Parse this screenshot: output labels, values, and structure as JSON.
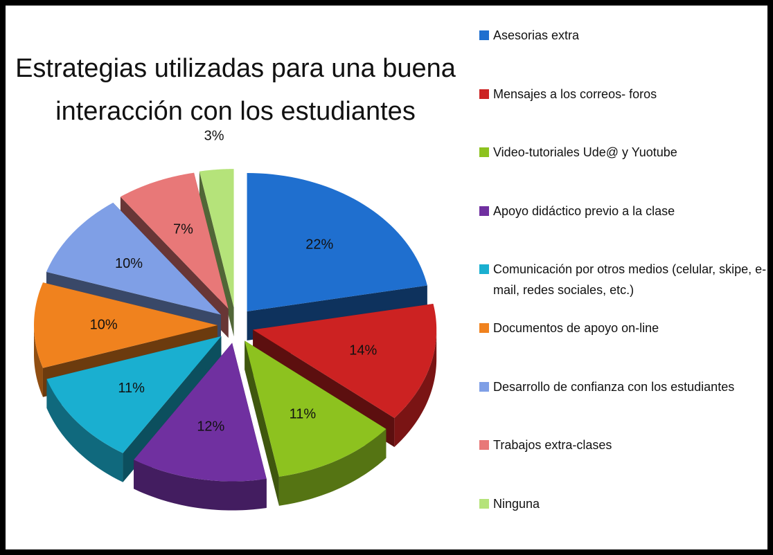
{
  "chart_data": {
    "type": "pie",
    "title": "Estrategias utilizadas para una buena interacción con los estudiantes",
    "categories": [
      "Asesorias extra",
      "Mensajes a los correos- foros",
      "Video-tutoriales Ude@ y Yuotube",
      "Apoyo didáctico previo a la clase",
      "Comunicación por otros medios (celular, skipe, e-mail, redes sociales, etc.)",
      "Documentos de apoyo on-line",
      "Desarrollo de confianza con los estudiantes",
      "Trabajos extra-clases",
      "Ninguna"
    ],
    "values": [
      22,
      14,
      11,
      12,
      11,
      10,
      10,
      7,
      3
    ],
    "value_labels": [
      "22%",
      "14%",
      "11%",
      "12%",
      "11%",
      "10%",
      "10%",
      "7%",
      "3%"
    ],
    "colors": [
      "#1f6fcf",
      "#cc2222",
      "#8dc21f",
      "#7030a0",
      "#1aafd0",
      "#f0821e",
      "#7f9fe6",
      "#e87878",
      "#b5e37a"
    ],
    "legend": "right"
  }
}
